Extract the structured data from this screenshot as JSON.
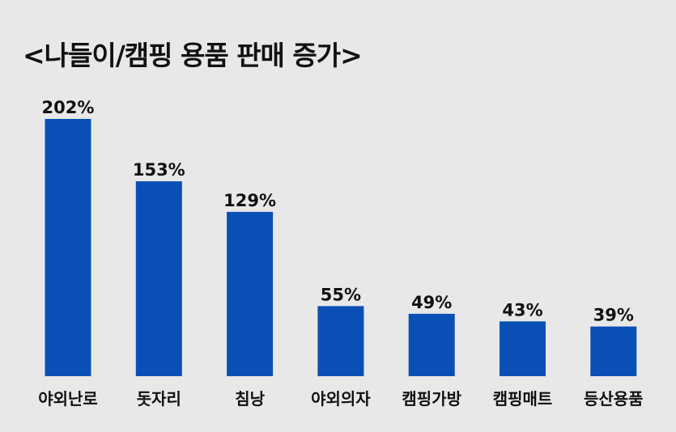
{
  "chart_data": {
    "type": "bar",
    "title": "<나들이/캠핑 용품 판매 증가>",
    "categories": [
      "야외난로",
      "돗자리",
      "침낭",
      "야외의자",
      "캠핑가방",
      "캠핑매트",
      "등산용품"
    ],
    "values": [
      202,
      153,
      129,
      55,
      49,
      43,
      39
    ],
    "value_labels": [
      "202%",
      "153%",
      "129%",
      "55%",
      "49%",
      "43%",
      "39%"
    ],
    "unit": "%",
    "ylim": [
      0,
      202
    ],
    "grid": false,
    "legend": "none",
    "bar_color": "#0a4fb5",
    "background": "#e8e8e8"
  }
}
